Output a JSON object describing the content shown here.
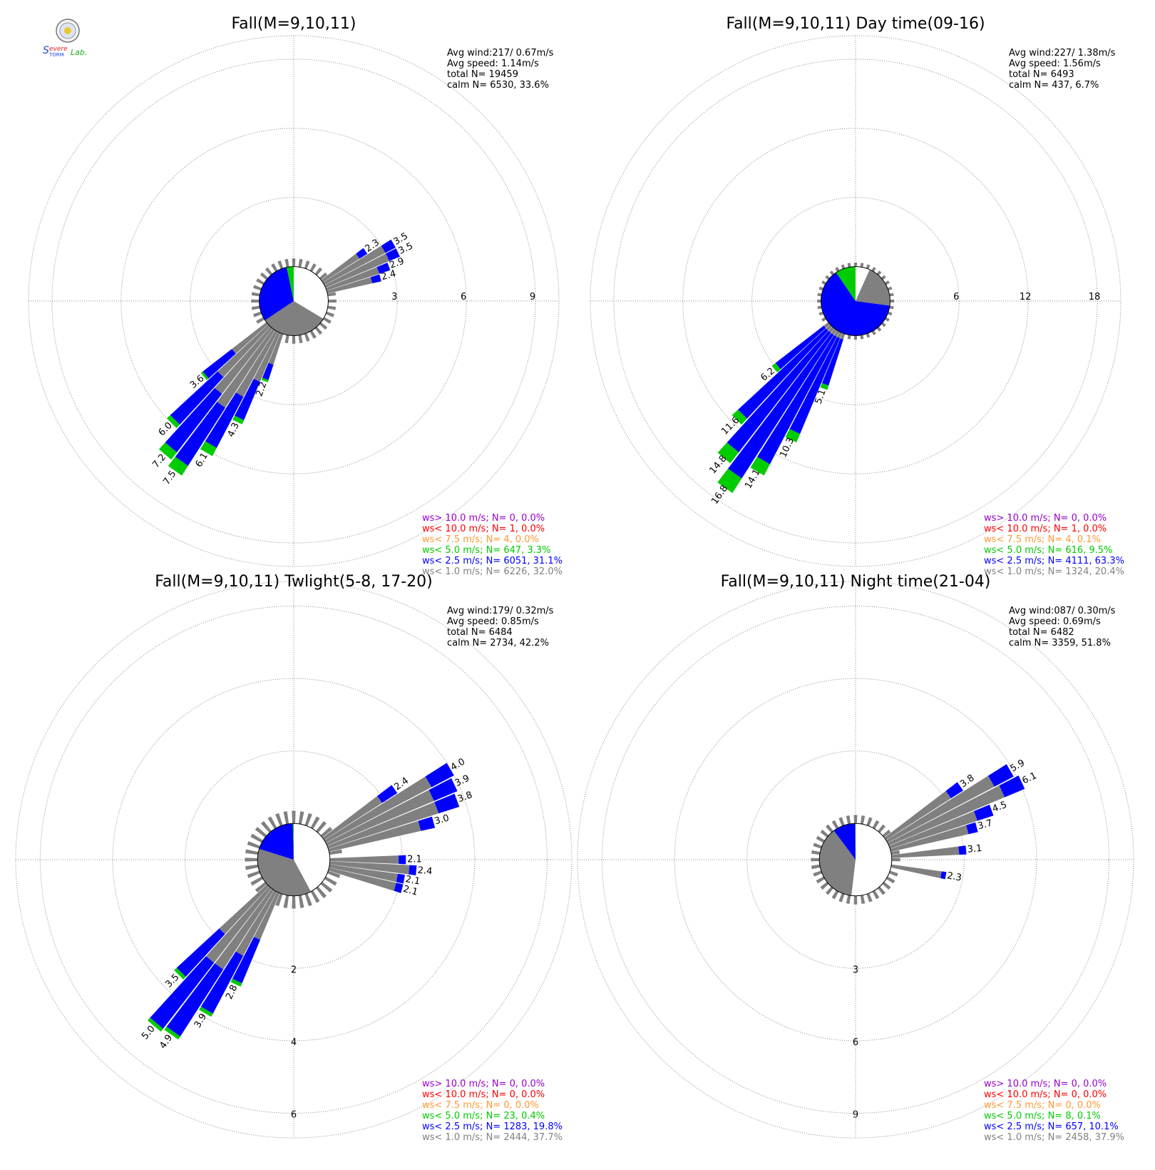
{
  "logo": {
    "text": "Severe Storm Lab.",
    "colors": [
      "#1a4ad9",
      "#e02020",
      "#22aa22"
    ]
  },
  "colors": {
    "gt10": "#9900cc",
    "lt10": "#ff0000",
    "lt75": "#ff9933",
    "lt5": "#00cc00",
    "lt25": "#0000ff",
    "lt1": "#808080",
    "grid": "#888888"
  },
  "chart_data": [
    {
      "type": "windrose",
      "title": "Fall(M=9,10,11)",
      "stats": [
        "Avg wind:217/ 0.67m/s",
        "Avg speed: 1.14m/s",
        "total N=       19459",
        "calm N=   6530,  33.6%"
      ],
      "ring_labels": [
        "3",
        "6",
        "9"
      ],
      "ring_values": [
        3,
        6,
        9
      ],
      "calm_radius": 1.5,
      "calm_pie": [
        {
          "cls": "white",
          "pct": 33.6
        },
        {
          "cls": "lt1",
          "pct": 32.0
        },
        {
          "cls": "lt25",
          "pct": 31.1
        },
        {
          "cls": "lt5",
          "pct": 3.3
        }
      ],
      "bars": [
        {
          "dir": 215,
          "total": 7.5,
          "lt1": 4.0,
          "lt25": 3.0,
          "lt5": 0.5,
          "label": "7.5"
        },
        {
          "dir": 220,
          "total": 7.2,
          "lt1": 3.6,
          "lt25": 3.2,
          "lt5": 0.4,
          "label": "7.2"
        },
        {
          "dir": 210,
          "total": 6.1,
          "lt1": 3.2,
          "lt25": 2.5,
          "lt5": 0.4,
          "label": "6.1"
        },
        {
          "dir": 205,
          "total": 4.3,
          "lt1": 2.3,
          "lt25": 1.8,
          "lt5": 0.2,
          "label": "4.3"
        },
        {
          "dir": 200,
          "total": 2.2,
          "lt1": 1.4,
          "lt25": 0.7,
          "lt5": 0.1,
          "label": "2.2"
        },
        {
          "dir": 225,
          "total": 6.0,
          "lt1": 3.0,
          "lt25": 2.8,
          "lt5": 0.2,
          "label": "6.0"
        },
        {
          "dir": 230,
          "total": 3.6,
          "lt1": 1.9,
          "lt25": 1.6,
          "lt5": 0.1,
          "label": "3.6"
        },
        {
          "dir": 55,
          "total": 2.3,
          "lt1": 1.9,
          "lt25": 0.4,
          "lt5": 0,
          "label": "2.3"
        },
        {
          "dir": 60,
          "total": 3.5,
          "lt1": 3.0,
          "lt25": 0.5,
          "lt5": 0,
          "label": "3.5"
        },
        {
          "dir": 65,
          "total": 3.5,
          "lt1": 3.0,
          "lt25": 0.5,
          "lt5": 0,
          "label": "3.5"
        },
        {
          "dir": 70,
          "total": 2.9,
          "lt1": 2.4,
          "lt25": 0.5,
          "lt5": 0,
          "label": "2.9"
        },
        {
          "dir": 75,
          "total": 2.4,
          "lt1": 2.0,
          "lt25": 0.4,
          "lt5": 0,
          "label": "2.4"
        }
      ],
      "legend": [
        {
          "cls": "gt10",
          "text": "ws> 10.0 m/s; N=     0,  0.0%"
        },
        {
          "cls": "lt10",
          "text": "ws< 10.0 m/s; N=     1,  0.0%"
        },
        {
          "cls": "lt75",
          "text": "ws<  7.5 m/s; N=     4,  0.0%"
        },
        {
          "cls": "lt5",
          "text": "ws<  5.0 m/s; N=   647,  3.3%"
        },
        {
          "cls": "lt25",
          "text": "ws<  2.5 m/s; N=  6051, 31.1%"
        },
        {
          "cls": "lt1",
          "text": "ws<  1.0 m/s; N=  6226, 32.0%"
        }
      ]
    },
    {
      "type": "windrose",
      "title": "Fall(M=9,10,11) Day time(09-16)",
      "stats": [
        "Avg wind:227/ 1.38m/s",
        "Avg speed: 1.56m/s",
        "total N=        6493",
        "calm N=    437,   6.7%"
      ],
      "ring_labels": [
        "6",
        "12",
        "18"
      ],
      "ring_values": [
        6,
        12,
        18
      ],
      "calm_radius": 3.0,
      "calm_pie": [
        {
          "cls": "white",
          "pct": 6.7
        },
        {
          "cls": "lt1",
          "pct": 20.4
        },
        {
          "cls": "lt25",
          "pct": 63.3
        },
        {
          "cls": "lt5",
          "pct": 9.5
        }
      ],
      "bars": [
        {
          "dir": 215,
          "total": 16.8,
          "lt1": 0.5,
          "lt25": 14.8,
          "lt5": 1.5,
          "label": "16.8"
        },
        {
          "dir": 220,
          "total": 14.8,
          "lt1": 0.5,
          "lt25": 13.1,
          "lt5": 1.2,
          "label": "14.8"
        },
        {
          "dir": 210,
          "total": 14.1,
          "lt1": 0.5,
          "lt25": 12.5,
          "lt5": 1.1,
          "label": "14.1"
        },
        {
          "dir": 205,
          "total": 10.3,
          "lt1": 0.5,
          "lt25": 9.0,
          "lt5": 0.8,
          "label": "10.3"
        },
        {
          "dir": 200,
          "total": 5.1,
          "lt1": 0.5,
          "lt25": 4.2,
          "lt5": 0.4,
          "label": "5.1"
        },
        {
          "dir": 225,
          "total": 11.6,
          "lt1": 0.5,
          "lt25": 10.4,
          "lt5": 0.7,
          "label": "11.6"
        },
        {
          "dir": 230,
          "total": 6.2,
          "lt1": 0.5,
          "lt25": 5.3,
          "lt5": 0.4,
          "label": "6.2"
        }
      ],
      "legend": [
        {
          "cls": "gt10",
          "text": "ws> 10.0 m/s; N=     0,  0.0%"
        },
        {
          "cls": "lt10",
          "text": "ws< 10.0 m/s; N=     1,  0.0%"
        },
        {
          "cls": "lt75",
          "text": "ws<  7.5 m/s; N=     4,  0.1%"
        },
        {
          "cls": "lt5",
          "text": "ws<  5.0 m/s; N=   616,  9.5%"
        },
        {
          "cls": "lt25",
          "text": "ws<  2.5 m/s; N=  4111, 63.3%"
        },
        {
          "cls": "lt1",
          "text": "ws<  1.0 m/s; N=  1324, 20.4%"
        }
      ]
    },
    {
      "type": "windrose",
      "title": "Fall(M=9,10,11) Twlight(5-8, 17-20)",
      "stats": [
        "Avg wind:179/ 0.32m/s",
        "Avg speed: 0.85m/s",
        "total N=        6484",
        "calm N=   2734,  42.2%"
      ],
      "ring_labels": [
        "2",
        "4",
        "6"
      ],
      "ring_values": [
        2,
        4,
        6
      ],
      "calm_radius": 1.0,
      "calm_pie": [
        {
          "cls": "white",
          "pct": 42.2
        },
        {
          "cls": "lt1",
          "pct": 37.7
        },
        {
          "cls": "lt25",
          "pct": 19.8
        },
        {
          "cls": "lt5",
          "pct": 0.4
        }
      ],
      "bars": [
        {
          "dir": 215,
          "total": 4.9,
          "lt1": 2.6,
          "lt25": 2.2,
          "lt5": 0.1,
          "label": "4.9"
        },
        {
          "dir": 220,
          "total": 5.0,
          "lt1": 2.6,
          "lt25": 2.3,
          "lt5": 0.1,
          "label": "5.0"
        },
        {
          "dir": 210,
          "total": 3.9,
          "lt1": 2.0,
          "lt25": 1.8,
          "lt5": 0.1,
          "label": "3.9"
        },
        {
          "dir": 205,
          "total": 2.8,
          "lt1": 1.4,
          "lt25": 1.3,
          "lt5": 0.1,
          "label": "2.8"
        },
        {
          "dir": 225,
          "total": 3.5,
          "lt1": 1.8,
          "lt25": 1.6,
          "lt5": 0.1,
          "label": "3.5"
        },
        {
          "dir": 55,
          "total": 2.4,
          "lt1": 1.9,
          "lt25": 0.5,
          "lt5": 0,
          "label": "2.4"
        },
        {
          "dir": 60,
          "total": 4.0,
          "lt1": 3.3,
          "lt25": 0.7,
          "lt5": 0,
          "label": "4.0"
        },
        {
          "dir": 65,
          "total": 3.9,
          "lt1": 3.2,
          "lt25": 0.7,
          "lt5": 0,
          "label": "3.9"
        },
        {
          "dir": 70,
          "total": 3.8,
          "lt1": 3.2,
          "lt25": 0.6,
          "lt5": 0,
          "label": "3.8"
        },
        {
          "dir": 75,
          "total": 3.0,
          "lt1": 2.6,
          "lt25": 0.4,
          "lt5": 0,
          "label": "3.0"
        },
        {
          "dir": 90,
          "total": 2.1,
          "lt1": 1.9,
          "lt25": 0.2,
          "lt5": 0,
          "label": "2.1"
        },
        {
          "dir": 95,
          "total": 2.4,
          "lt1": 2.2,
          "lt25": 0.2,
          "lt5": 0,
          "label": "2.4"
        },
        {
          "dir": 100,
          "total": 2.1,
          "lt1": 1.9,
          "lt25": 0.2,
          "lt5": 0,
          "label": "2.1"
        },
        {
          "dir": 105,
          "total": 2.1,
          "lt1": 1.9,
          "lt25": 0.2,
          "lt5": 0,
          "label": "2.1"
        }
      ],
      "legend": [
        {
          "cls": "gt10",
          "text": "ws> 10.0 m/s; N=     0,  0.0%"
        },
        {
          "cls": "lt10",
          "text": "ws< 10.0 m/s; N=     0,  0.0%"
        },
        {
          "cls": "lt75",
          "text": "ws<  7.5 m/s; N=     0,  0.0%"
        },
        {
          "cls": "lt5",
          "text": "ws<  5.0 m/s; N=    23,  0.4%"
        },
        {
          "cls": "lt25",
          "text": "ws<  2.5 m/s; N=  1283, 19.8%"
        },
        {
          "cls": "lt1",
          "text": "ws<  1.0 m/s; N=  2444, 37.7%"
        }
      ]
    },
    {
      "type": "windrose",
      "title": "Fall(M=9,10,11) Night time(21-04)",
      "stats": [
        "Avg wind:087/ 0.30m/s",
        "Avg speed: 0.69m/s",
        "total N=        6482",
        "calm N=   3359,  51.8%"
      ],
      "ring_labels": [
        "3",
        "6",
        "9"
      ],
      "ring_values": [
        3,
        6,
        9
      ],
      "calm_radius": 1.5,
      "calm_pie": [
        {
          "cls": "white",
          "pct": 51.8
        },
        {
          "cls": "lt1",
          "pct": 37.9
        },
        {
          "cls": "lt25",
          "pct": 10.1
        },
        {
          "cls": "lt5",
          "pct": 0.1
        }
      ],
      "bars": [
        {
          "dir": 55,
          "total": 3.8,
          "lt1": 3.2,
          "lt25": 0.6,
          "lt5": 0,
          "label": "3.8"
        },
        {
          "dir": 60,
          "total": 5.9,
          "lt1": 5.0,
          "lt25": 0.9,
          "lt5": 0,
          "label": "5.9"
        },
        {
          "dir": 65,
          "total": 6.1,
          "lt1": 5.2,
          "lt25": 0.9,
          "lt5": 0,
          "label": "6.1"
        },
        {
          "dir": 70,
          "total": 4.5,
          "lt1": 3.8,
          "lt25": 0.7,
          "lt5": 0,
          "label": "4.5"
        },
        {
          "dir": 75,
          "total": 3.7,
          "lt1": 3.3,
          "lt25": 0.4,
          "lt5": 0,
          "label": "3.7"
        },
        {
          "dir": 85,
          "total": 3.1,
          "lt1": 2.8,
          "lt25": 0.3,
          "lt5": 0,
          "label": "3.1"
        },
        {
          "dir": 100,
          "total": 2.3,
          "lt1": 2.1,
          "lt25": 0.2,
          "lt5": 0,
          "label": "2.3"
        }
      ],
      "legend": [
        {
          "cls": "gt10",
          "text": "ws> 10.0 m/s; N=     0,  0.0%"
        },
        {
          "cls": "lt10",
          "text": "ws< 10.0 m/s; N=     0,  0.0%"
        },
        {
          "cls": "lt75",
          "text": "ws<  7.5 m/s; N=     0,  0.0%"
        },
        {
          "cls": "lt5",
          "text": "ws<  5.0 m/s; N=     8,  0.1%"
        },
        {
          "cls": "lt25",
          "text": "ws<  2.5 m/s; N=   657, 10.1%"
        },
        {
          "cls": "lt1",
          "text": "ws<  1.0 m/s; N=  2458, 37.9%"
        }
      ]
    }
  ]
}
